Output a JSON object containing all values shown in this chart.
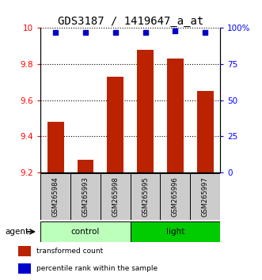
{
  "title": "GDS3187 / 1419647_a_at",
  "samples": [
    "GSM265984",
    "GSM265993",
    "GSM265998",
    "GSM265995",
    "GSM265996",
    "GSM265997"
  ],
  "bar_values": [
    9.48,
    9.27,
    9.73,
    9.88,
    9.83,
    9.65
  ],
  "percentile_values": [
    97,
    97,
    97,
    97,
    98,
    97
  ],
  "ylim_left": [
    9.2,
    10.0
  ],
  "ylim_right": [
    0,
    100
  ],
  "yticks_left": [
    9.2,
    9.4,
    9.6,
    9.8,
    10.0
  ],
  "ytick_labels_left": [
    "9.2",
    "9.4",
    "9.6",
    "9.8",
    "10"
  ],
  "yticks_right": [
    0,
    25,
    50,
    75,
    100
  ],
  "ytick_labels_right": [
    "0",
    "25",
    "50",
    "75",
    "100%"
  ],
  "bar_color": "#bb2200",
  "dot_color": "#0000cc",
  "bar_width": 0.55,
  "group_control_color": "#bbffbb",
  "group_light_color": "#00cc00",
  "agent_label": "agent",
  "legend_items": [
    {
      "label": "transformed count",
      "color": "#bb2200"
    },
    {
      "label": "percentile rank within the sample",
      "color": "#0000cc"
    }
  ],
  "sample_box_color": "#cccccc",
  "title_fontsize": 10
}
